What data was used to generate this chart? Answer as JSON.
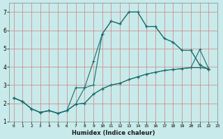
{
  "xlabel": "Humidex (Indice chaleur)",
  "bg_color": "#c8eaea",
  "grid_color": "#d08080",
  "line_color": "#1a6e6e",
  "xlim": [
    -0.5,
    23
  ],
  "ylim": [
    1,
    7.5
  ],
  "xticks": [
    0,
    1,
    2,
    3,
    4,
    5,
    6,
    7,
    8,
    9,
    10,
    11,
    12,
    13,
    14,
    15,
    16,
    17,
    18,
    19,
    20,
    21,
    22,
    23
  ],
  "yticks": [
    1,
    2,
    3,
    4,
    5,
    6,
    7
  ],
  "line1_x": [
    0,
    1,
    2,
    3,
    4,
    5,
    6,
    7,
    8,
    9,
    10,
    11,
    12,
    13,
    14,
    15,
    16,
    17,
    18,
    19,
    20,
    21,
    22
  ],
  "line1_y": [
    2.3,
    2.1,
    1.7,
    1.5,
    1.6,
    1.45,
    1.6,
    2.85,
    2.85,
    3.0,
    5.8,
    6.5,
    6.35,
    7.0,
    7.0,
    6.2,
    6.2,
    5.55,
    5.35,
    4.9,
    4.9,
    4.1,
    3.85
  ],
  "line2_x": [
    0,
    1,
    2,
    3,
    4,
    5,
    6,
    7,
    8,
    9,
    10,
    11,
    12,
    13,
    14,
    15,
    16,
    17,
    18,
    19,
    20,
    21,
    22
  ],
  "line2_y": [
    2.3,
    2.1,
    1.7,
    1.5,
    1.6,
    1.45,
    1.6,
    1.95,
    2.85,
    4.3,
    5.8,
    6.5,
    6.35,
    7.0,
    7.0,
    6.2,
    6.2,
    5.55,
    5.35,
    4.9,
    4.9,
    4.1,
    3.85
  ],
  "line3_x": [
    0,
    1,
    2,
    3,
    4,
    5,
    6,
    7,
    8,
    9,
    10,
    11,
    12,
    13,
    14,
    15,
    16,
    17,
    18,
    19,
    20,
    21,
    22
  ],
  "line3_y": [
    2.3,
    2.1,
    1.7,
    1.5,
    1.6,
    1.45,
    1.6,
    1.95,
    2.0,
    2.5,
    2.8,
    3.0,
    3.1,
    3.3,
    3.45,
    3.6,
    3.7,
    3.8,
    3.85,
    3.9,
    3.95,
    3.95,
    3.9
  ],
  "line4_x": [
    0,
    1,
    2,
    3,
    4,
    5,
    6,
    7,
    8,
    9,
    10,
    11,
    12,
    13,
    14,
    15,
    16,
    17,
    18,
    19,
    20,
    21,
    22
  ],
  "line4_y": [
    2.3,
    2.1,
    1.7,
    1.5,
    1.6,
    1.45,
    1.6,
    1.95,
    2.0,
    2.5,
    2.8,
    3.0,
    3.1,
    3.3,
    3.45,
    3.6,
    3.7,
    3.8,
    3.85,
    3.9,
    3.95,
    4.95,
    3.9
  ]
}
